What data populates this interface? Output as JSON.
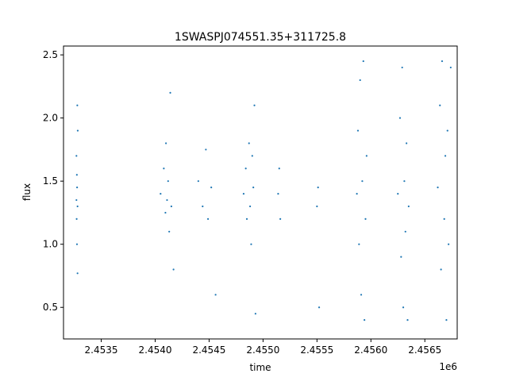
{
  "chart_data": {
    "type": "scatter",
    "title": "1SWASPJ074551.35+311725.8",
    "xlabel": "time",
    "ylabel": "flux",
    "x_offset_label": "1e6",
    "xlim": [
      2453150,
      2456800
    ],
    "ylim": [
      0.25,
      2.57
    ],
    "x_ticks": [
      2453500,
      2454000,
      2454500,
      2455000,
      2455500,
      2456000,
      2456500
    ],
    "x_tick_labels": [
      "2.4535",
      "2.4540",
      "2.4545",
      "2.4550",
      "2.4555",
      "2.4560",
      "2.4565"
    ],
    "y_ticks": [
      0.5,
      1.0,
      1.5,
      2.0,
      2.5
    ],
    "y_tick_labels": [
      "0.5",
      "1.0",
      "1.5",
      "2.0",
      "2.5"
    ],
    "grid": false,
    "marker_color": "#1f77b4",
    "series": [
      {
        "x": [
          2453270,
          2453270,
          2453272,
          2453274,
          2453275,
          2453276,
          2453278,
          2453280,
          2453280,
          2453282,
          2454050,
          2454080,
          2454095,
          2454100,
          2454110,
          2454120,
          2454130,
          2454140,
          2454150,
          2454170,
          2454400,
          2454440,
          2454470,
          2454490,
          2454520,
          2454560,
          2454820,
          2454840,
          2454850,
          2454870,
          2454880,
          2454890,
          2454900,
          2454910,
          2454920,
          2454930,
          2455140,
          2455150,
          2455160,
          2455500,
          2455510,
          2455520,
          2455870,
          2455880,
          2455890,
          2455900,
          2455910,
          2455920,
          2455930,
          2455940,
          2455950,
          2455960,
          2456250,
          2456270,
          2456280,
          2456290,
          2456300,
          2456310,
          2456320,
          2456330,
          2456340,
          2456350,
          2456620,
          2456640,
          2456650,
          2456660,
          2456680,
          2456690,
          2456700,
          2456710,
          2456720,
          2456740
        ],
        "y": [
          1.35,
          1.7,
          1.2,
          1.55,
          1.0,
          1.45,
          2.1,
          1.3,
          0.77,
          1.9,
          1.4,
          1.6,
          1.25,
          1.8,
          1.35,
          1.5,
          1.1,
          2.2,
          1.3,
          0.8,
          1.5,
          1.3,
          1.75,
          1.2,
          1.45,
          0.6,
          1.4,
          1.6,
          1.2,
          1.8,
          1.3,
          1.0,
          1.7,
          1.45,
          2.1,
          0.45,
          1.4,
          1.6,
          1.2,
          1.3,
          1.45,
          0.5,
          1.4,
          1.9,
          1.0,
          2.3,
          0.6,
          1.5,
          2.45,
          0.4,
          1.2,
          1.7,
          1.4,
          2.0,
          0.9,
          2.4,
          0.5,
          1.5,
          1.1,
          1.8,
          0.4,
          1.3,
          1.45,
          2.1,
          0.8,
          2.45,
          1.2,
          1.7,
          0.4,
          1.9,
          1.0,
          2.4
        ]
      }
    ]
  }
}
